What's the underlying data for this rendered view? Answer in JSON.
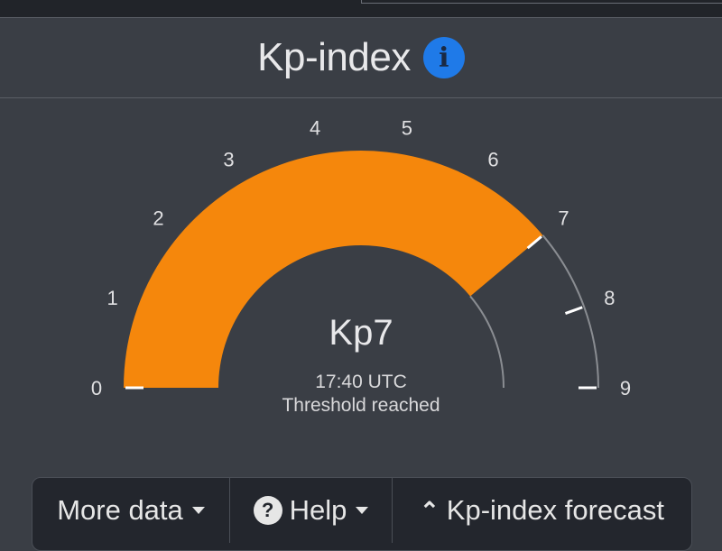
{
  "header": {
    "title": "Kp-index",
    "info_icon": "info-circle-icon"
  },
  "gauge": {
    "value": 7,
    "min": 0,
    "max": 9,
    "ticks": [
      "0",
      "1",
      "2",
      "3",
      "4",
      "5",
      "6",
      "7",
      "8",
      "9"
    ],
    "value_label": "Kp7",
    "time": "17:40 UTC",
    "status": "Threshold reached",
    "fill_color": "#f5870c",
    "track_color": "#8a8d92"
  },
  "buttons": {
    "more_data": "More data",
    "help": "Help",
    "forecast": "Kp-index forecast"
  }
}
